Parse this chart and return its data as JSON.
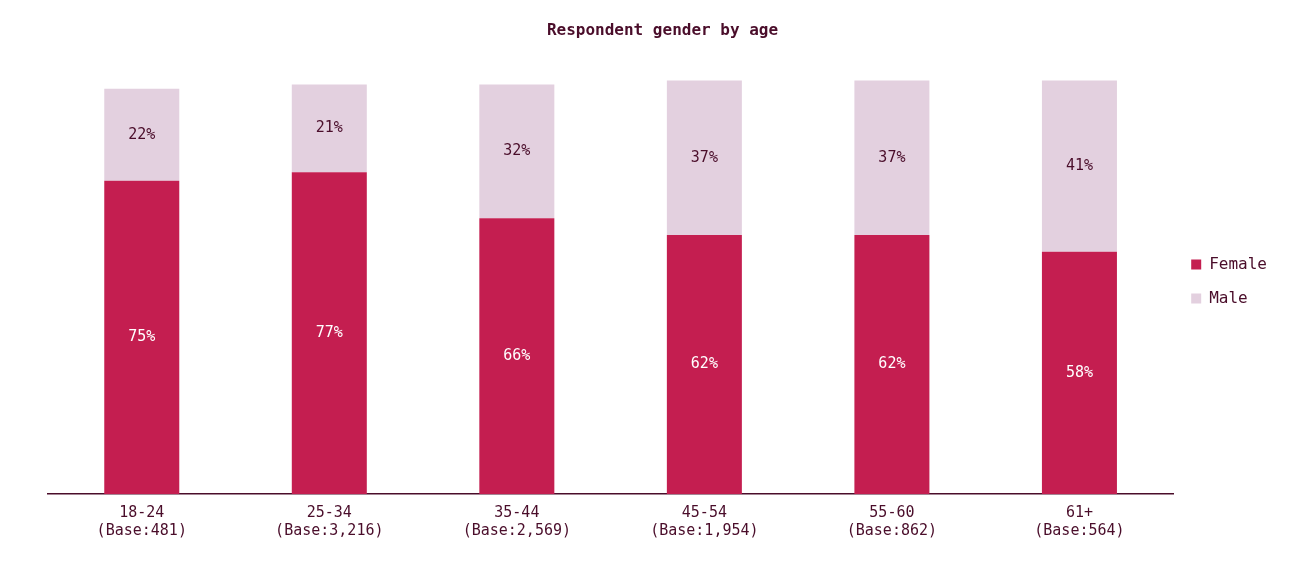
{
  "chart_data": {
    "type": "bar",
    "title": "Respondent gender by age",
    "categories": [
      "18-24 (Base:481)",
      "25-34 (Base:3,216)",
      "35-44 (Base:2,569)",
      "45-54 (Base:1,954)",
      "55-60 (Base:862)",
      "61+ (Base:564)"
    ],
    "series": [
      {
        "name": "Female",
        "color": "#c41e50",
        "values": [
          75,
          77,
          66,
          62,
          62,
          58
        ],
        "value_labels": [
          "75%",
          "77%",
          "66%",
          "62%",
          "62%",
          "58%"
        ]
      },
      {
        "name": "Male",
        "color": "#e3d0df",
        "values": [
          22,
          21,
          32,
          37,
          37,
          41
        ],
        "value_labels": [
          "22%",
          "21%",
          "32%",
          "37%",
          "37%",
          "41%"
        ]
      }
    ],
    "stacked": true,
    "grid": false,
    "legend": "right",
    "tick_labels": "x"
  }
}
